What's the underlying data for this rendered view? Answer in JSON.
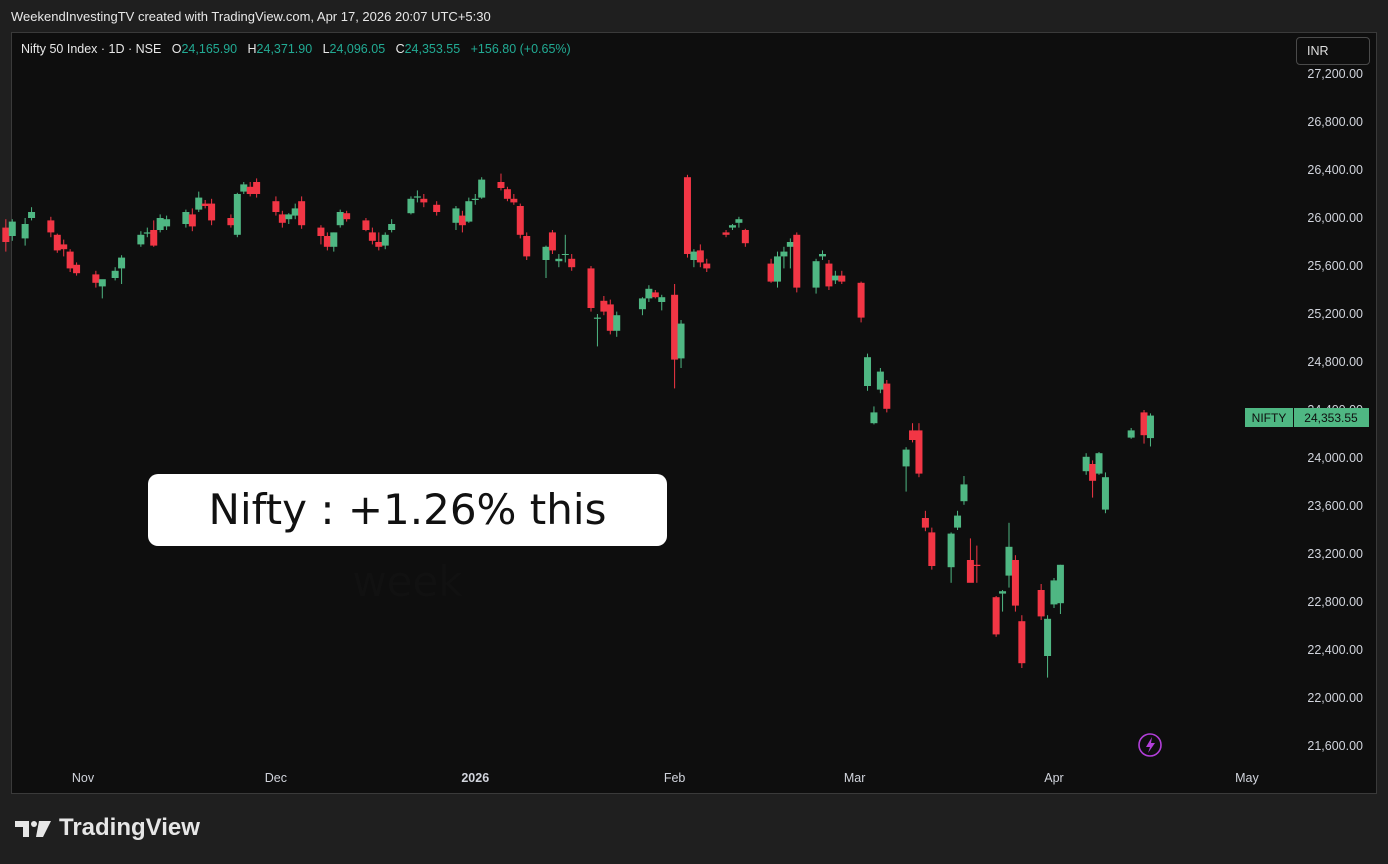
{
  "header": {
    "attribution": "WeekendInvestingTV created with TradingView.com, Apr 17, 2026 20:07 UTC+5:30"
  },
  "legend": {
    "symbol": "Nifty 50 Index · 1D · NSE",
    "o_label": "O",
    "o": "24,165.90",
    "h_label": "H",
    "h": "24,371.90",
    "l_label": "L",
    "l": "24,096.05",
    "c_label": "C",
    "c": "24,353.55",
    "change": "+156.80 (+0.65%)"
  },
  "currency": "INR",
  "annotation": "Nifty : +1.26% this week",
  "price_label": {
    "name": "NIFTY",
    "value": "24,353.55"
  },
  "logo_text": "TradingView",
  "colors": {
    "up": "#4fb783",
    "down": "#f23645",
    "background": "#0e0e0e",
    "price_tag": "#4fb783",
    "alert_icon": "#b23fd9"
  },
  "icons": [
    "lightning-alert-icon",
    "tradingview-logo-icon"
  ],
  "chart_data": {
    "type": "candlestick",
    "title": "Nifty 50 Index · 1D · NSE",
    "y_ticks": [
      27200,
      26800,
      26400,
      26000,
      25600,
      25200,
      24800,
      24400,
      24000,
      23600,
      23200,
      22800,
      22400,
      22000,
      21600
    ],
    "y_tick_labels": [
      "27,200.00",
      "26,800.00",
      "26,400.00",
      "26,000.00",
      "25,600.00",
      "25,200.00",
      "24,800.00",
      "24,400.00",
      "24,000.00",
      "23,600.00",
      "23,200.00",
      "22,800.00",
      "22,400.00",
      "22,000.00",
      "21,600.00"
    ],
    "x_tick_labels": [
      "Nov",
      "Dec",
      "2026",
      "Feb",
      "Mar",
      "Apr",
      "May"
    ],
    "x_tick_dates": [
      "2025-11-01",
      "2025-12-01",
      "2026-01-01",
      "2026-02-01",
      "2026-03-01",
      "2026-04-01",
      "2026-05-01"
    ],
    "grid": false,
    "last_close": 24353.55,
    "candles": [
      {
        "date": "2025-10-17",
        "o": 26030,
        "h": 26070,
        "l": 25830,
        "c": 25860
      },
      {
        "date": "2025-10-20",
        "o": 25920,
        "h": 25990,
        "l": 25720,
        "c": 25800
      },
      {
        "date": "2025-10-21",
        "o": 25850,
        "h": 25990,
        "l": 25810,
        "c": 25970
      },
      {
        "date": "2025-10-23",
        "o": 25830,
        "h": 26000,
        "l": 25770,
        "c": 25950
      },
      {
        "date": "2025-10-24",
        "o": 26000,
        "h": 26090,
        "l": 25980,
        "c": 26050
      },
      {
        "date": "2025-10-27",
        "o": 25980,
        "h": 26010,
        "l": 25840,
        "c": 25880
      },
      {
        "date": "2025-10-28",
        "o": 25860,
        "h": 25870,
        "l": 25710,
        "c": 25730
      },
      {
        "date": "2025-10-29",
        "o": 25780,
        "h": 25820,
        "l": 25680,
        "c": 25740
      },
      {
        "date": "2025-10-30",
        "o": 25720,
        "h": 25740,
        "l": 25550,
        "c": 25580
      },
      {
        "date": "2025-10-31",
        "o": 25610,
        "h": 25630,
        "l": 25520,
        "c": 25540
      },
      {
        "date": "2025-11-03",
        "o": 25530,
        "h": 25560,
        "l": 25420,
        "c": 25460
      },
      {
        "date": "2025-11-04",
        "o": 25430,
        "h": 25480,
        "l": 25330,
        "c": 25490
      },
      {
        "date": "2025-11-06",
        "o": 25500,
        "h": 25590,
        "l": 25480,
        "c": 25560
      },
      {
        "date": "2025-11-07",
        "o": 25580,
        "h": 25690,
        "l": 25450,
        "c": 25670
      },
      {
        "date": "2025-11-10",
        "o": 25780,
        "h": 25890,
        "l": 25760,
        "c": 25860
      },
      {
        "date": "2025-11-11",
        "o": 25870,
        "h": 25920,
        "l": 25840,
        "c": 25880
      },
      {
        "date": "2025-11-12",
        "o": 25900,
        "h": 25980,
        "l": 25760,
        "c": 25770
      },
      {
        "date": "2025-11-13",
        "o": 25900,
        "h": 26030,
        "l": 25880,
        "c": 26000
      },
      {
        "date": "2025-11-14",
        "o": 25930,
        "h": 26020,
        "l": 25900,
        "c": 25990
      },
      {
        "date": "2025-11-17",
        "o": 25950,
        "h": 26070,
        "l": 25920,
        "c": 26050
      },
      {
        "date": "2025-11-18",
        "o": 26030,
        "h": 26080,
        "l": 25890,
        "c": 25930
      },
      {
        "date": "2025-11-19",
        "o": 26070,
        "h": 26220,
        "l": 26050,
        "c": 26170
      },
      {
        "date": "2025-11-20",
        "o": 26120,
        "h": 26150,
        "l": 26080,
        "c": 26100
      },
      {
        "date": "2025-11-21",
        "o": 26120,
        "h": 26160,
        "l": 25940,
        "c": 25980
      },
      {
        "date": "2025-11-24",
        "o": 26000,
        "h": 26030,
        "l": 25920,
        "c": 25940
      },
      {
        "date": "2025-11-25",
        "o": 25860,
        "h": 26210,
        "l": 25840,
        "c": 26200
      },
      {
        "date": "2025-11-26",
        "o": 26220,
        "h": 26300,
        "l": 26200,
        "c": 26280
      },
      {
        "date": "2025-11-27",
        "o": 26260,
        "h": 26300,
        "l": 26180,
        "c": 26200
      },
      {
        "date": "2025-11-28",
        "o": 26300,
        "h": 26330,
        "l": 26170,
        "c": 26200
      },
      {
        "date": "2025-12-01",
        "o": 26140,
        "h": 26180,
        "l": 26020,
        "c": 26050
      },
      {
        "date": "2025-12-02",
        "o": 26030,
        "h": 26060,
        "l": 25920,
        "c": 25960
      },
      {
        "date": "2025-12-03",
        "o": 25990,
        "h": 26040,
        "l": 25950,
        "c": 26030
      },
      {
        "date": "2025-12-04",
        "o": 26020,
        "h": 26120,
        "l": 25990,
        "c": 26080
      },
      {
        "date": "2025-12-05",
        "o": 26140,
        "h": 26180,
        "l": 25910,
        "c": 25940
      },
      {
        "date": "2025-12-08",
        "o": 25920,
        "h": 25940,
        "l": 25780,
        "c": 25850
      },
      {
        "date": "2025-12-09",
        "o": 25850,
        "h": 25880,
        "l": 25730,
        "c": 25760
      },
      {
        "date": "2025-12-10",
        "o": 25760,
        "h": 25880,
        "l": 25720,
        "c": 25880
      },
      {
        "date": "2025-12-11",
        "o": 25940,
        "h": 26070,
        "l": 25920,
        "c": 26050
      },
      {
        "date": "2025-12-12",
        "o": 26040,
        "h": 26060,
        "l": 25970,
        "c": 25990
      },
      {
        "date": "2025-12-15",
        "o": 25980,
        "h": 26000,
        "l": 25890,
        "c": 25900
      },
      {
        "date": "2025-12-16",
        "o": 25880,
        "h": 25920,
        "l": 25780,
        "c": 25810
      },
      {
        "date": "2025-12-17",
        "o": 25800,
        "h": 25880,
        "l": 25730,
        "c": 25760
      },
      {
        "date": "2025-12-18",
        "o": 25770,
        "h": 25880,
        "l": 25740,
        "c": 25860
      },
      {
        "date": "2025-12-19",
        "o": 25900,
        "h": 25990,
        "l": 25880,
        "c": 25950
      },
      {
        "date": "2025-12-22",
        "o": 26040,
        "h": 26180,
        "l": 26030,
        "c": 26160
      },
      {
        "date": "2025-12-23",
        "o": 26170,
        "h": 26230,
        "l": 26130,
        "c": 26180
      },
      {
        "date": "2025-12-24",
        "o": 26160,
        "h": 26200,
        "l": 26090,
        "c": 26130
      },
      {
        "date": "2025-12-26",
        "o": 26110,
        "h": 26140,
        "l": 26020,
        "c": 26050
      },
      {
        "date": "2025-12-29",
        "o": 25960,
        "h": 26100,
        "l": 25900,
        "c": 26080
      },
      {
        "date": "2025-12-30",
        "o": 26020,
        "h": 26060,
        "l": 25880,
        "c": 25940
      },
      {
        "date": "2025-12-31",
        "o": 25970,
        "h": 26170,
        "l": 25960,
        "c": 26140
      },
      {
        "date": "2026-01-01",
        "o": 26150,
        "h": 26200,
        "l": 26110,
        "c": 26160
      },
      {
        "date": "2026-01-02",
        "o": 26170,
        "h": 26340,
        "l": 26160,
        "c": 26320
      },
      {
        "date": "2026-01-05",
        "o": 26300,
        "h": 26370,
        "l": 26230,
        "c": 26250
      },
      {
        "date": "2026-01-06",
        "o": 26240,
        "h": 26260,
        "l": 26140,
        "c": 26160
      },
      {
        "date": "2026-01-07",
        "o": 26160,
        "h": 26200,
        "l": 26110,
        "c": 26130
      },
      {
        "date": "2026-01-08",
        "o": 26100,
        "h": 26120,
        "l": 25830,
        "c": 25860
      },
      {
        "date": "2026-01-09",
        "o": 25850,
        "h": 25880,
        "l": 25650,
        "c": 25680
      },
      {
        "date": "2026-01-12",
        "o": 25650,
        "h": 25770,
        "l": 25500,
        "c": 25760
      },
      {
        "date": "2026-01-13",
        "o": 25880,
        "h": 25900,
        "l": 25700,
        "c": 25730
      },
      {
        "date": "2026-01-14",
        "o": 25640,
        "h": 25700,
        "l": 25590,
        "c": 25660
      },
      {
        "date": "2026-01-15",
        "o": 25700,
        "h": 25860,
        "l": 25630,
        "c": 25700
      },
      {
        "date": "2026-01-16",
        "o": 25660,
        "h": 25700,
        "l": 25560,
        "c": 25590
      },
      {
        "date": "2026-01-19",
        "o": 25580,
        "h": 25600,
        "l": 25220,
        "c": 25250
      },
      {
        "date": "2026-01-20",
        "o": 25160,
        "h": 25200,
        "l": 24930,
        "c": 25170
      },
      {
        "date": "2026-01-21",
        "o": 25310,
        "h": 25350,
        "l": 25190,
        "c": 25220
      },
      {
        "date": "2026-01-22",
        "o": 25280,
        "h": 25320,
        "l": 25030,
        "c": 25060
      },
      {
        "date": "2026-01-23",
        "o": 25060,
        "h": 25220,
        "l": 25010,
        "c": 25190
      },
      {
        "date": "2026-01-27",
        "o": 25240,
        "h": 25340,
        "l": 25190,
        "c": 25330
      },
      {
        "date": "2026-01-28",
        "o": 25330,
        "h": 25440,
        "l": 25300,
        "c": 25410
      },
      {
        "date": "2026-01-29",
        "o": 25380,
        "h": 25400,
        "l": 25330,
        "c": 25340
      },
      {
        "date": "2026-01-30",
        "o": 25300,
        "h": 25360,
        "l": 25230,
        "c": 25340
      },
      {
        "date": "2026-02-01",
        "o": 25360,
        "h": 25450,
        "l": 24580,
        "c": 24820
      },
      {
        "date": "2026-02-02",
        "o": 24830,
        "h": 25150,
        "l": 24750,
        "c": 25120
      },
      {
        "date": "2026-02-03",
        "o": 26340,
        "h": 26360,
        "l": 25670,
        "c": 25700
      },
      {
        "date": "2026-02-04",
        "o": 25650,
        "h": 25740,
        "l": 25590,
        "c": 25720
      },
      {
        "date": "2026-02-05",
        "o": 25730,
        "h": 25780,
        "l": 25590,
        "c": 25630
      },
      {
        "date": "2026-02-06",
        "o": 25620,
        "h": 25660,
        "l": 25550,
        "c": 25580
      },
      {
        "date": "2026-02-09",
        "o": 25880,
        "h": 25900,
        "l": 25840,
        "c": 25860
      },
      {
        "date": "2026-02-10",
        "o": 25920,
        "h": 25950,
        "l": 25900,
        "c": 25940
      },
      {
        "date": "2026-02-11",
        "o": 25960,
        "h": 26010,
        "l": 25920,
        "c": 25990
      },
      {
        "date": "2026-02-12",
        "o": 25900,
        "h": 25910,
        "l": 25760,
        "c": 25790
      },
      {
        "date": "2026-02-16",
        "o": 25620,
        "h": 25660,
        "l": 25460,
        "c": 25470
      },
      {
        "date": "2026-02-17",
        "o": 25470,
        "h": 25720,
        "l": 25420,
        "c": 25680
      },
      {
        "date": "2026-02-18",
        "o": 25680,
        "h": 25760,
        "l": 25580,
        "c": 25720
      },
      {
        "date": "2026-02-19",
        "o": 25760,
        "h": 25830,
        "l": 25580,
        "c": 25800
      },
      {
        "date": "2026-02-20",
        "o": 25860,
        "h": 25880,
        "l": 25380,
        "c": 25420
      },
      {
        "date": "2026-02-23",
        "o": 25420,
        "h": 25660,
        "l": 25370,
        "c": 25640
      },
      {
        "date": "2026-02-24",
        "o": 25680,
        "h": 25730,
        "l": 25650,
        "c": 25700
      },
      {
        "date": "2026-02-25",
        "o": 25620,
        "h": 25650,
        "l": 25400,
        "c": 25430
      },
      {
        "date": "2026-02-26",
        "o": 25480,
        "h": 25560,
        "l": 25450,
        "c": 25520
      },
      {
        "date": "2026-02-27",
        "o": 25520,
        "h": 25560,
        "l": 25450,
        "c": 25470
      },
      {
        "date": "2026-03-02",
        "o": 25460,
        "h": 25470,
        "l": 25130,
        "c": 25170
      },
      {
        "date": "2026-03-03",
        "o": 24600,
        "h": 24870,
        "l": 24560,
        "c": 24840
      },
      {
        "date": "2026-03-04",
        "o": 24290,
        "h": 24430,
        "l": 24280,
        "c": 24380
      },
      {
        "date": "2026-03-05",
        "o": 24570,
        "h": 24750,
        "l": 24540,
        "c": 24720
      },
      {
        "date": "2026-03-06",
        "o": 24620,
        "h": 24650,
        "l": 24380,
        "c": 24410
      },
      {
        "date": "2026-03-09",
        "o": 23930,
        "h": 24090,
        "l": 23720,
        "c": 24070
      },
      {
        "date": "2026-03-10",
        "o": 24230,
        "h": 24290,
        "l": 24130,
        "c": 24150
      },
      {
        "date": "2026-03-11",
        "o": 24230,
        "h": 24290,
        "l": 23840,
        "c": 23870
      },
      {
        "date": "2026-03-12",
        "o": 23500,
        "h": 23560,
        "l": 23390,
        "c": 23420
      },
      {
        "date": "2026-03-13",
        "o": 23380,
        "h": 23420,
        "l": 23070,
        "c": 23100
      },
      {
        "date": "2026-03-16",
        "o": 23090,
        "h": 23380,
        "l": 22960,
        "c": 23370
      },
      {
        "date": "2026-03-17",
        "o": 23420,
        "h": 23560,
        "l": 23400,
        "c": 23520
      },
      {
        "date": "2026-03-18",
        "o": 23640,
        "h": 23850,
        "l": 23610,
        "c": 23780
      },
      {
        "date": "2026-03-19",
        "o": 23150,
        "h": 23330,
        "l": 22990,
        "c": 22960
      },
      {
        "date": "2026-03-20",
        "o": 23110,
        "h": 23270,
        "l": 22960,
        "c": 23100
      },
      {
        "date": "2026-03-23",
        "o": 22840,
        "h": 22850,
        "l": 22510,
        "c": 22530
      },
      {
        "date": "2026-03-24",
        "o": 22870,
        "h": 22900,
        "l": 22720,
        "c": 22890
      },
      {
        "date": "2026-03-25",
        "o": 23020,
        "h": 23460,
        "l": 22920,
        "c": 23260
      },
      {
        "date": "2026-03-26",
        "o": 23150,
        "h": 23190,
        "l": 22720,
        "c": 22770
      },
      {
        "date": "2026-03-27",
        "o": 22640,
        "h": 22690,
        "l": 22250,
        "c": 22290
      },
      {
        "date": "2026-03-30",
        "o": 22900,
        "h": 22950,
        "l": 22650,
        "c": 22680
      },
      {
        "date": "2026-03-31",
        "o": 22350,
        "h": 22690,
        "l": 22170,
        "c": 22660
      },
      {
        "date": "2026-04-01",
        "o": 22780,
        "h": 23000,
        "l": 22750,
        "c": 22980
      },
      {
        "date": "2026-04-02",
        "o": 22790,
        "h": 23110,
        "l": 22700,
        "c": 23110
      },
      {
        "date": "2026-04-06",
        "o": 23890,
        "h": 24040,
        "l": 23860,
        "c": 24010
      },
      {
        "date": "2026-04-07",
        "o": 23950,
        "h": 23980,
        "l": 23670,
        "c": 23810
      },
      {
        "date": "2026-04-08",
        "o": 23870,
        "h": 24050,
        "l": 23860,
        "c": 24040
      },
      {
        "date": "2026-04-09",
        "o": 23570,
        "h": 23880,
        "l": 23540,
        "c": 23840
      },
      {
        "date": "2026-04-13",
        "o": 24170,
        "h": 24250,
        "l": 24160,
        "c": 24230
      },
      {
        "date": "2026-04-15",
        "o": 24380,
        "h": 24400,
        "l": 24120,
        "c": 24190
      },
      {
        "date": "2026-04-16",
        "o": 24165.9,
        "h": 24371.9,
        "l": 24096.05,
        "c": 24353.55
      }
    ]
  }
}
